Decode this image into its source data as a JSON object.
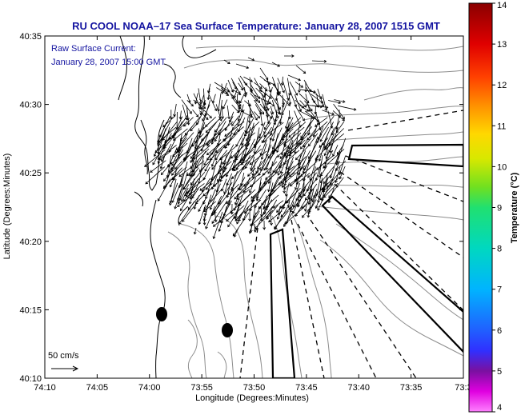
{
  "title": "RU COOL  NOAA–17  Sea Surface Temperature:  January 28, 2007 1515 GMT",
  "annotation": {
    "line1": "Raw Surface Current:",
    "line2": "January 28, 2007 15:00 GMT"
  },
  "axes": {
    "xlabel": "Longitude (Degrees:Minutes)",
    "ylabel": "Latitude (Degrees:Minutes)",
    "x_ticks": [
      "74:10",
      "74:05",
      "74:00",
      "73:55",
      "73:50",
      "73:45",
      "73:40",
      "73:35",
      "73:3"
    ],
    "y_ticks": [
      "40:35",
      "40:30",
      "40:25",
      "40:20",
      "40:15",
      "40:10"
    ]
  },
  "colorbar": {
    "label": "Temperature (°C)",
    "ticks": [
      "14",
      "13",
      "12",
      "11",
      "10",
      "9",
      "8",
      "7",
      "6",
      "5",
      "4"
    ]
  },
  "scale_arrow": {
    "label": "50 cm/s"
  },
  "colors": {
    "title": "#1414a0",
    "coast": "#000000",
    "bathymetry": "#8c8c8c"
  }
}
